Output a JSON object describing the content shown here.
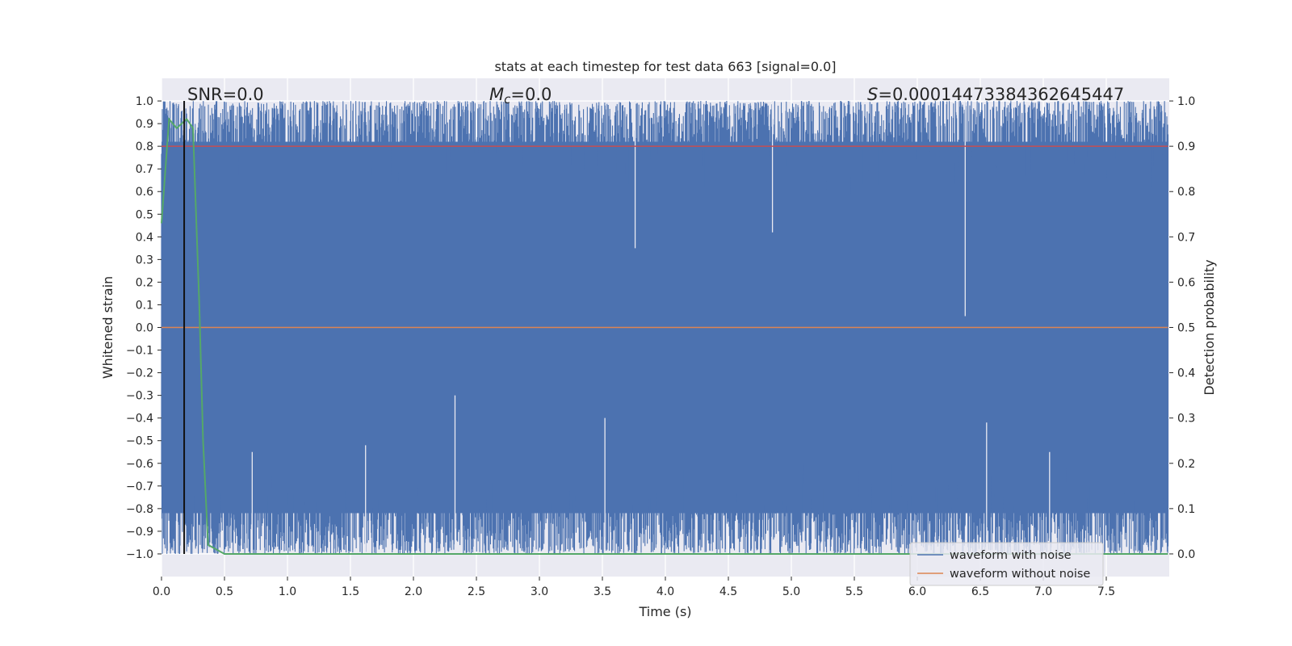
{
  "chart_data": {
    "type": "line",
    "title": "stats at each timestep for test data 663 [signal=0.0]",
    "xlabel": "Time (s)",
    "ylabel": "Whitened strain",
    "ylabel_right": "Detection probability",
    "xlim": [
      0.0,
      8.0
    ],
    "ylim": [
      -1.1,
      1.1
    ],
    "ylim_right": [
      -0.05,
      1.05
    ],
    "x_ticks": [
      "0.0",
      "0.5",
      "1.0",
      "1.5",
      "2.0",
      "2.5",
      "3.0",
      "3.5",
      "4.0",
      "4.5",
      "5.0",
      "5.5",
      "6.0",
      "6.5",
      "7.0",
      "7.5"
    ],
    "y_ticks": [
      "1.0",
      "0.9",
      "0.8",
      "0.7",
      "0.6",
      "0.5",
      "0.4",
      "0.3",
      "0.2",
      "0.1",
      "0.0",
      "−0.1",
      "−0.2",
      "−0.3",
      "−0.4",
      "−0.5",
      "−0.6",
      "−0.7",
      "−0.8",
      "−0.9",
      "−1.0"
    ],
    "y_right_ticks": [
      "1.0",
      "0.9",
      "0.8",
      "0.7",
      "0.6",
      "0.5",
      "0.4",
      "0.3",
      "0.2",
      "0.1",
      "0.0"
    ],
    "grid": true,
    "legend_position": "lower right",
    "annotations": {
      "snr": "SNR=0.0",
      "mc_symbol": "M",
      "mc_sub": "c",
      "mc_value": "=0.0",
      "s_symbol": "S",
      "s_value": "=0.00014473384362645447"
    },
    "series": [
      {
        "name": "waveform with noise",
        "axis": "left",
        "color": "#4c72b0",
        "description": "dense noise filling roughly -1.0 to 1.0 across the full duration",
        "x_range": [
          0.0,
          7.99
        ],
        "envelope_min": -1.0,
        "envelope_max": 1.0
      },
      {
        "name": "waveform without noise",
        "axis": "left",
        "color": "#dd8452",
        "x": [
          0.0,
          7.99
        ],
        "y": [
          0.0,
          0.0
        ]
      },
      {
        "name": "",
        "axis": "right",
        "color": "#55a868",
        "x": [
          0.0,
          0.06,
          0.12,
          0.2,
          0.25,
          0.3,
          0.33,
          0.37,
          0.5,
          1.0,
          2.0,
          3.0,
          4.0,
          5.0,
          6.0,
          7.0,
          7.99
        ],
        "y": [
          0.73,
          0.96,
          0.94,
          0.96,
          0.94,
          0.55,
          0.25,
          0.02,
          0.0,
          0.0,
          0.0,
          0.0,
          0.0,
          0.0,
          0.0,
          0.0,
          0.0
        ]
      },
      {
        "name": "",
        "axis": "right",
        "color": "#c44e52",
        "x": [
          0.0,
          7.99
        ],
        "y": [
          0.9,
          0.9
        ]
      }
    ],
    "vertical_line": {
      "x": 0.18,
      "color": "#111111"
    },
    "legend_entries": [
      "waveform with noise",
      "waveform without noise"
    ],
    "colors": {
      "plot_background": "#eaeaf2",
      "grid": "#ffffff",
      "noise": "#4c72b0",
      "clean": "#dd8452",
      "probability": "#55a868",
      "threshold": "#c44e52"
    }
  }
}
